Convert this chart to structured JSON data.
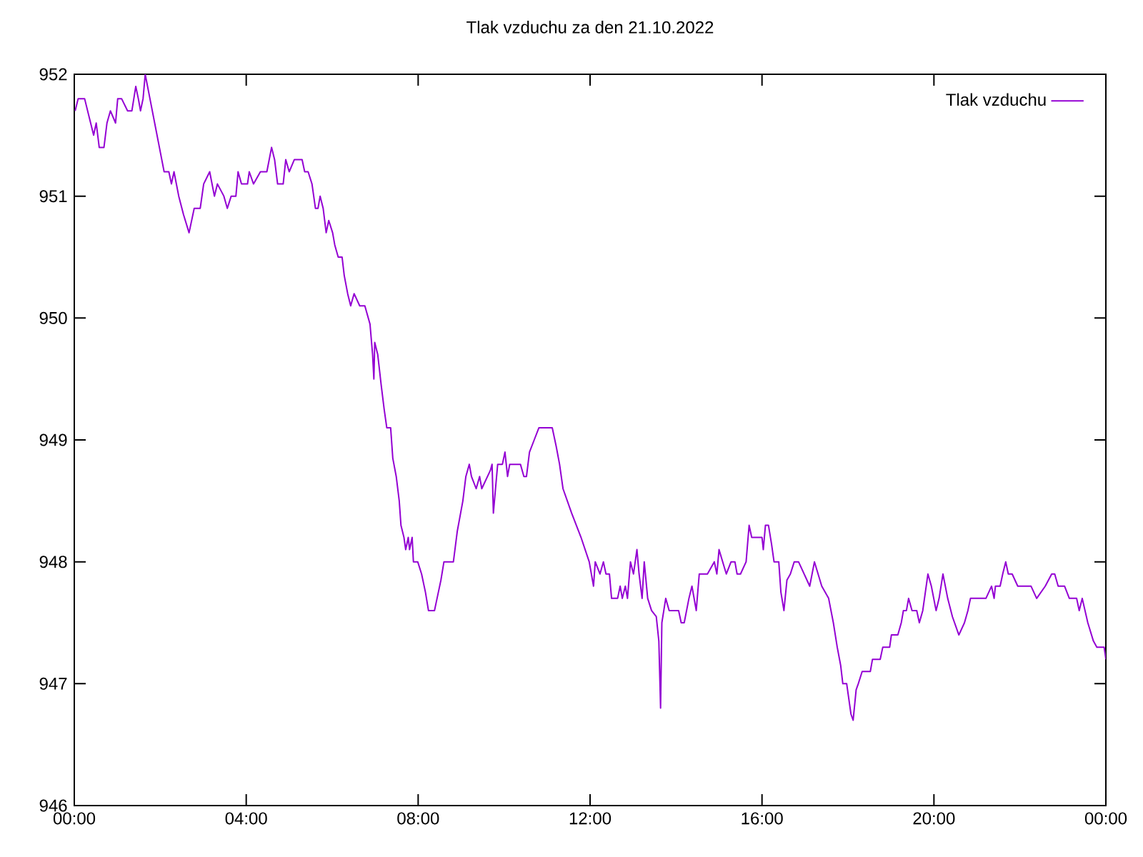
{
  "chart_data": {
    "type": "line",
    "title": "Tlak vzduchu za den 21.10.2022",
    "xlim": [
      0,
      24
    ],
    "ylim": [
      946,
      952
    ],
    "xticks": [
      {
        "value": 0,
        "label": "00:00"
      },
      {
        "value": 4,
        "label": "04:00"
      },
      {
        "value": 8,
        "label": "08:00"
      },
      {
        "value": 12,
        "label": "12:00"
      },
      {
        "value": 16,
        "label": "16:00"
      },
      {
        "value": 20,
        "label": "20:00"
      },
      {
        "value": 24,
        "label": "00:00"
      }
    ],
    "yticks": [
      946,
      947,
      948,
      949,
      950,
      951,
      952
    ],
    "legend": "top right",
    "grid": false,
    "marker": "none",
    "line_style": "solid",
    "series": [
      {
        "name": "Tlak vzduchu",
        "color": "#9400d3",
        "x": [
          0.02,
          0.09,
          0.24,
          0.38,
          0.45,
          0.51,
          0.58,
          0.69,
          0.76,
          0.84,
          0.96,
          1.01,
          1.1,
          1.24,
          1.34,
          1.43,
          1.49,
          1.54,
          1.6,
          1.65,
          1.76,
          1.87,
          1.98,
          2.09,
          2.2,
          2.26,
          2.32,
          2.43,
          2.54,
          2.67,
          2.79,
          2.93,
          3.01,
          3.15,
          3.26,
          3.33,
          3.48,
          3.56,
          3.65,
          3.76,
          3.81,
          3.89,
          4.03,
          4.07,
          4.17,
          4.33,
          4.48,
          4.59,
          4.66,
          4.73,
          4.86,
          4.92,
          5.0,
          5.12,
          5.3,
          5.36,
          5.44,
          5.53,
          5.61,
          5.67,
          5.72,
          5.79,
          5.86,
          5.92,
          6.01,
          6.06,
          6.14,
          6.23,
          6.28,
          6.36,
          6.43,
          6.51,
          6.64,
          6.76,
          6.88,
          6.94,
          6.97,
          6.99,
          7.06,
          7.14,
          7.21,
          7.27,
          7.36,
          7.41,
          7.49,
          7.56,
          7.6,
          7.67,
          7.71,
          7.77,
          7.8,
          7.86,
          7.89,
          7.99,
          8.08,
          8.17,
          8.24,
          8.38,
          8.44,
          8.53,
          8.6,
          8.82,
          8.91,
          9.04,
          9.11,
          9.19,
          9.24,
          9.35,
          9.43,
          9.48,
          9.68,
          9.72,
          9.75,
          9.8,
          9.85,
          9.96,
          10.02,
          10.08,
          10.13,
          10.38,
          10.46,
          10.52,
          10.59,
          10.7,
          10.81,
          11.12,
          11.21,
          11.29,
          11.37,
          11.57,
          11.79,
          11.98,
          12.08,
          12.12,
          12.23,
          12.31,
          12.37,
          12.45,
          12.5,
          12.64,
          12.7,
          12.75,
          12.82,
          12.87,
          12.94,
          13.01,
          13.09,
          13.14,
          13.21,
          13.26,
          13.34,
          13.43,
          13.54,
          13.6,
          13.64,
          13.67,
          13.76,
          13.84,
          14.06,
          14.12,
          14.19,
          14.3,
          14.37,
          14.47,
          14.54,
          14.73,
          14.89,
          14.95,
          15.0,
          15.17,
          15.28,
          15.37,
          15.42,
          15.5,
          15.63,
          15.7,
          15.76,
          16.0,
          16.03,
          16.08,
          16.15,
          16.22,
          16.28,
          16.39,
          16.44,
          16.51,
          16.58,
          16.66,
          16.75,
          16.85,
          17.11,
          17.22,
          17.39,
          17.55,
          17.66,
          17.75,
          17.83,
          17.88,
          17.97,
          18.07,
          18.12,
          18.19,
          18.24,
          18.33,
          18.52,
          18.57,
          18.75,
          18.81,
          18.97,
          19.01,
          19.16,
          19.24,
          19.29,
          19.36,
          19.41,
          19.49,
          19.6,
          19.66,
          19.74,
          19.82,
          19.86,
          19.94,
          20.05,
          20.12,
          20.21,
          20.32,
          20.43,
          20.58,
          20.71,
          20.79,
          20.85,
          21.21,
          21.34,
          21.4,
          21.43,
          21.54,
          21.6,
          21.67,
          21.73,
          21.82,
          21.95,
          22.26,
          22.39,
          22.59,
          22.74,
          22.81,
          22.89,
          23.04,
          23.15,
          23.32,
          23.38,
          23.45,
          23.58,
          23.71,
          23.79,
          23.96,
          24.0
        ],
        "values": [
          951.7,
          951.8,
          951.8,
          951.6,
          951.5,
          951.6,
          951.4,
          951.4,
          951.6,
          951.7,
          951.6,
          951.8,
          951.8,
          951.7,
          951.7,
          951.9,
          951.8,
          951.7,
          951.8,
          952.0,
          951.8,
          951.6,
          951.4,
          951.2,
          951.2,
          951.1,
          951.2,
          951.0,
          950.85,
          950.7,
          950.9,
          950.9,
          951.1,
          951.2,
          951.0,
          951.1,
          951.0,
          950.9,
          951.0,
          951.0,
          951.2,
          951.1,
          951.1,
          951.2,
          951.1,
          951.2,
          951.2,
          951.4,
          951.3,
          951.1,
          951.1,
          951.3,
          951.2,
          951.3,
          951.3,
          951.2,
          951.2,
          951.1,
          950.9,
          950.9,
          951.0,
          950.9,
          950.7,
          950.8,
          950.7,
          950.6,
          950.5,
          950.5,
          950.35,
          950.2,
          950.1,
          950.2,
          950.1,
          950.1,
          949.95,
          949.7,
          949.5,
          949.8,
          949.7,
          949.45,
          949.25,
          949.1,
          949.1,
          948.85,
          948.7,
          948.5,
          948.3,
          948.2,
          948.1,
          948.2,
          948.1,
          948.2,
          948.0,
          948.0,
          947.9,
          947.75,
          947.6,
          947.6,
          947.7,
          947.85,
          948.0,
          948.0,
          948.25,
          948.5,
          948.7,
          948.8,
          948.7,
          948.6,
          948.7,
          948.6,
          948.75,
          948.8,
          948.4,
          948.6,
          948.8,
          948.8,
          948.9,
          948.7,
          948.8,
          948.8,
          948.7,
          948.7,
          948.9,
          949.0,
          949.1,
          949.1,
          948.95,
          948.8,
          948.6,
          948.4,
          948.2,
          948.0,
          947.8,
          948.0,
          947.9,
          948.0,
          947.9,
          947.9,
          947.7,
          947.7,
          947.8,
          947.7,
          947.8,
          947.7,
          948.0,
          947.9,
          948.1,
          947.9,
          947.7,
          948.0,
          947.7,
          947.6,
          947.55,
          947.35,
          946.8,
          947.5,
          947.7,
          947.6,
          947.6,
          947.5,
          947.5,
          947.7,
          947.8,
          947.6,
          947.9,
          947.9,
          948.0,
          947.9,
          948.1,
          947.9,
          948.0,
          948.0,
          947.9,
          947.9,
          948.0,
          948.3,
          948.2,
          948.2,
          948.1,
          948.3,
          948.3,
          948.15,
          948.0,
          948.0,
          947.75,
          947.6,
          947.85,
          947.9,
          948.0,
          948.0,
          947.8,
          948.0,
          947.8,
          947.7,
          947.5,
          947.3,
          947.15,
          947.0,
          947.0,
          946.75,
          946.7,
          946.95,
          947.0,
          947.1,
          947.1,
          947.2,
          947.2,
          947.3,
          947.3,
          947.4,
          947.4,
          947.5,
          947.6,
          947.6,
          947.7,
          947.6,
          947.6,
          947.5,
          947.6,
          947.8,
          947.9,
          947.8,
          947.6,
          947.7,
          947.9,
          947.7,
          947.55,
          947.4,
          947.5,
          947.6,
          947.7,
          947.7,
          947.8,
          947.7,
          947.8,
          947.8,
          947.9,
          948.0,
          947.9,
          947.9,
          947.8,
          947.8,
          947.7,
          947.8,
          947.9,
          947.9,
          947.8,
          947.8,
          947.7,
          947.7,
          947.6,
          947.7,
          947.5,
          947.35,
          947.3,
          947.3,
          947.2
        ]
      }
    ]
  }
}
